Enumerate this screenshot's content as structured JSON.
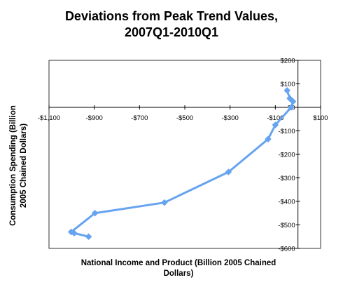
{
  "chart_data": {
    "type": "scatter",
    "title_lines": [
      "Deviations from Peak Trend Values,",
      "2007Q1-2010Q1"
    ],
    "xlabel_lines": [
      "National Income and Product (Billion 2005 Chained",
      "Dollars)"
    ],
    "ylabel_lines": [
      "Consumption Spending (Billion",
      "2005 Chained Dollars)"
    ],
    "xlim": [
      -1100,
      100
    ],
    "ylim": [
      -600,
      200
    ],
    "x_ticks": [
      -1100,
      -900,
      -700,
      -500,
      -300,
      -100,
      100
    ],
    "x_tick_labels": [
      "-$1,100",
      "-$900",
      "-$700",
      "-$500",
      "-$300",
      "-$100",
      "$100"
    ],
    "y_ticks": [
      200,
      100,
      0,
      -100,
      -200,
      -300,
      -400,
      -500,
      -600
    ],
    "y_tick_labels": [
      "$200",
      "$100",
      "$0",
      "-$100",
      "-$200",
      "-$300",
      "-$400",
      "-$500",
      "-$600"
    ],
    "grid": false,
    "legend": "none",
    "color": "#66a3f0",
    "series": [
      {
        "marker": "diamond",
        "points": [
          {
            "x": -48,
            "y": 72
          },
          {
            "x": -36,
            "y": 38
          },
          {
            "x": -22,
            "y": 25
          },
          {
            "x": -30,
            "y": 0
          },
          {
            "x": -100,
            "y": -75
          },
          {
            "x": -132,
            "y": -135
          },
          {
            "x": -307,
            "y": -275
          },
          {
            "x": -590,
            "y": -405
          },
          {
            "x": -897,
            "y": -450
          },
          {
            "x": -1002,
            "y": -530
          },
          {
            "x": -989,
            "y": -535
          },
          {
            "x": -925,
            "y": -550
          }
        ]
      }
    ]
  }
}
